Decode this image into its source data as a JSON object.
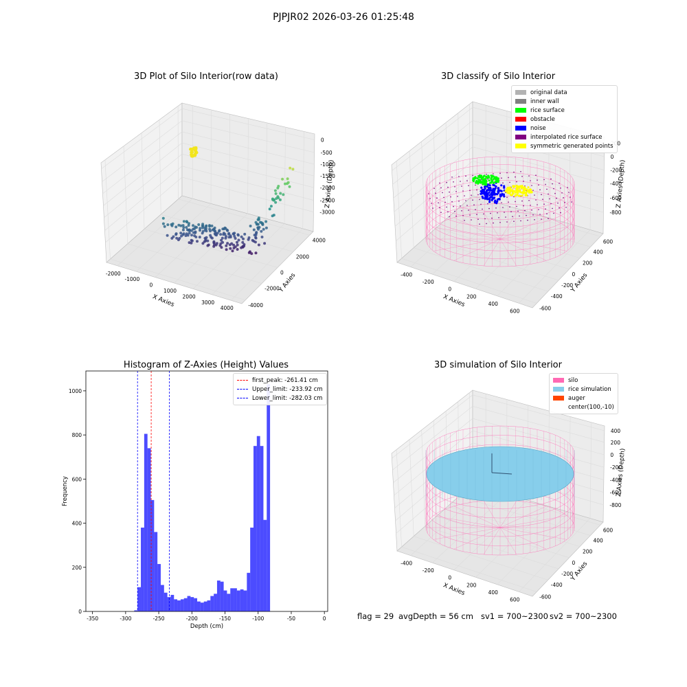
{
  "suptitle": "PJPJR02 2026-03-26 01:25:48",
  "chart_data": [
    {
      "type": "scatter",
      "title": "3D Plot of Silo Interior(row data)",
      "xlabel": "X Axies",
      "ylabel": "Y Axies",
      "zlabel": "Z Axies (Depth)",
      "x_ticks": [
        "-2000",
        "-1000",
        "0",
        "1000",
        "2000",
        "3000",
        "4000"
      ],
      "y_ticks": [
        "-4000",
        "-2000",
        "0",
        "2000",
        "4000"
      ],
      "z_ticks": [
        "-3000",
        "-2500",
        "-2000",
        "-1500",
        "-1000",
        "-500",
        "0"
      ],
      "colormap": "viridis"
    },
    {
      "type": "scatter",
      "title": "3D classify of Silo Interior",
      "xlabel": "X Axies",
      "ylabel": "Y Axies",
      "zlabel": "Z Axies (Depth)",
      "x_ticks": [
        "-400",
        "-200",
        "0",
        "200",
        "400",
        "600"
      ],
      "y_ticks": [
        "-600",
        "-400",
        "-200",
        "0",
        "200",
        "400",
        "600"
      ],
      "z_ticks": [
        "-800",
        "-600",
        "-400",
        "-200",
        "0",
        "200"
      ],
      "legend": [
        {
          "label": "original data",
          "color": "#b3b3b3"
        },
        {
          "label": "inner wall",
          "color": "#808080"
        },
        {
          "label": "rice surface",
          "color": "#00ff00"
        },
        {
          "label": "obstacle",
          "color": "#ff0000"
        },
        {
          "label": "noise",
          "color": "#0000ff"
        },
        {
          "label": "interpolated rice surface",
          "color": "#800080"
        },
        {
          "label": "symmetric generated points",
          "color": "#ffff00"
        }
      ]
    },
    {
      "type": "bar",
      "title": "Histogram of Z-Axies (Height) Values",
      "xlabel": "Depth (cm)",
      "ylabel": "Frequency",
      "xlim": [
        -360,
        5
      ],
      "ylim": [
        0,
        1090
      ],
      "x_ticks": [
        -350,
        -300,
        -250,
        -200,
        -150,
        -100,
        -50,
        0
      ],
      "y_ticks": [
        0,
        200,
        400,
        600,
        800,
        1000
      ],
      "bin_width": 5,
      "bin_start": -287,
      "color": "#0000ff",
      "values": [
        5,
        110,
        380,
        805,
        740,
        505,
        360,
        215,
        120,
        85,
        65,
        75,
        55,
        50,
        55,
        60,
        70,
        65,
        60,
        45,
        40,
        45,
        50,
        70,
        80,
        140,
        135,
        95,
        80,
        105,
        105,
        95,
        100,
        95,
        175,
        380,
        750,
        795,
        750,
        415,
        1030
      ],
      "lines": [
        {
          "label": "first_peak: -261.41 cm",
          "x": -261.41,
          "color": "#ff0000"
        },
        {
          "label": "Upper_limit: -233.92 cm",
          "x": -233.92,
          "color": "#0000ff"
        },
        {
          "label": "Lower_limit: -282.03 cm",
          "x": -282.03,
          "color": "#0000ff"
        }
      ]
    },
    {
      "type": "scatter",
      "title": "3D simulation of Silo Interior",
      "xlabel": "X Axies",
      "ylabel": "Y Axies",
      "zlabel": "Z Axies (Depth)",
      "x_ticks": [
        "-400",
        "-200",
        "0",
        "200",
        "400",
        "600"
      ],
      "y_ticks": [
        "-600",
        "-400",
        "-200",
        "0",
        "200",
        "400",
        "600"
      ],
      "z_ticks": [
        "-800",
        "-600",
        "-400",
        "-200",
        "0",
        "200",
        "400"
      ],
      "legend": [
        {
          "label": "silo",
          "color": "#ff69b4"
        },
        {
          "label": "rice simulation",
          "color": "#87ceeb"
        },
        {
          "label": "auger",
          "color": "#ff4500"
        },
        {
          "label": "center(100,-10)",
          "color": ""
        }
      ]
    }
  ],
  "footer": {
    "flag": "flag = 29",
    "avg_depth": "avgDepth = 56 cm",
    "sv1": "sv1 = 700~2300",
    "sv2": "sv2 = 700~2300"
  }
}
